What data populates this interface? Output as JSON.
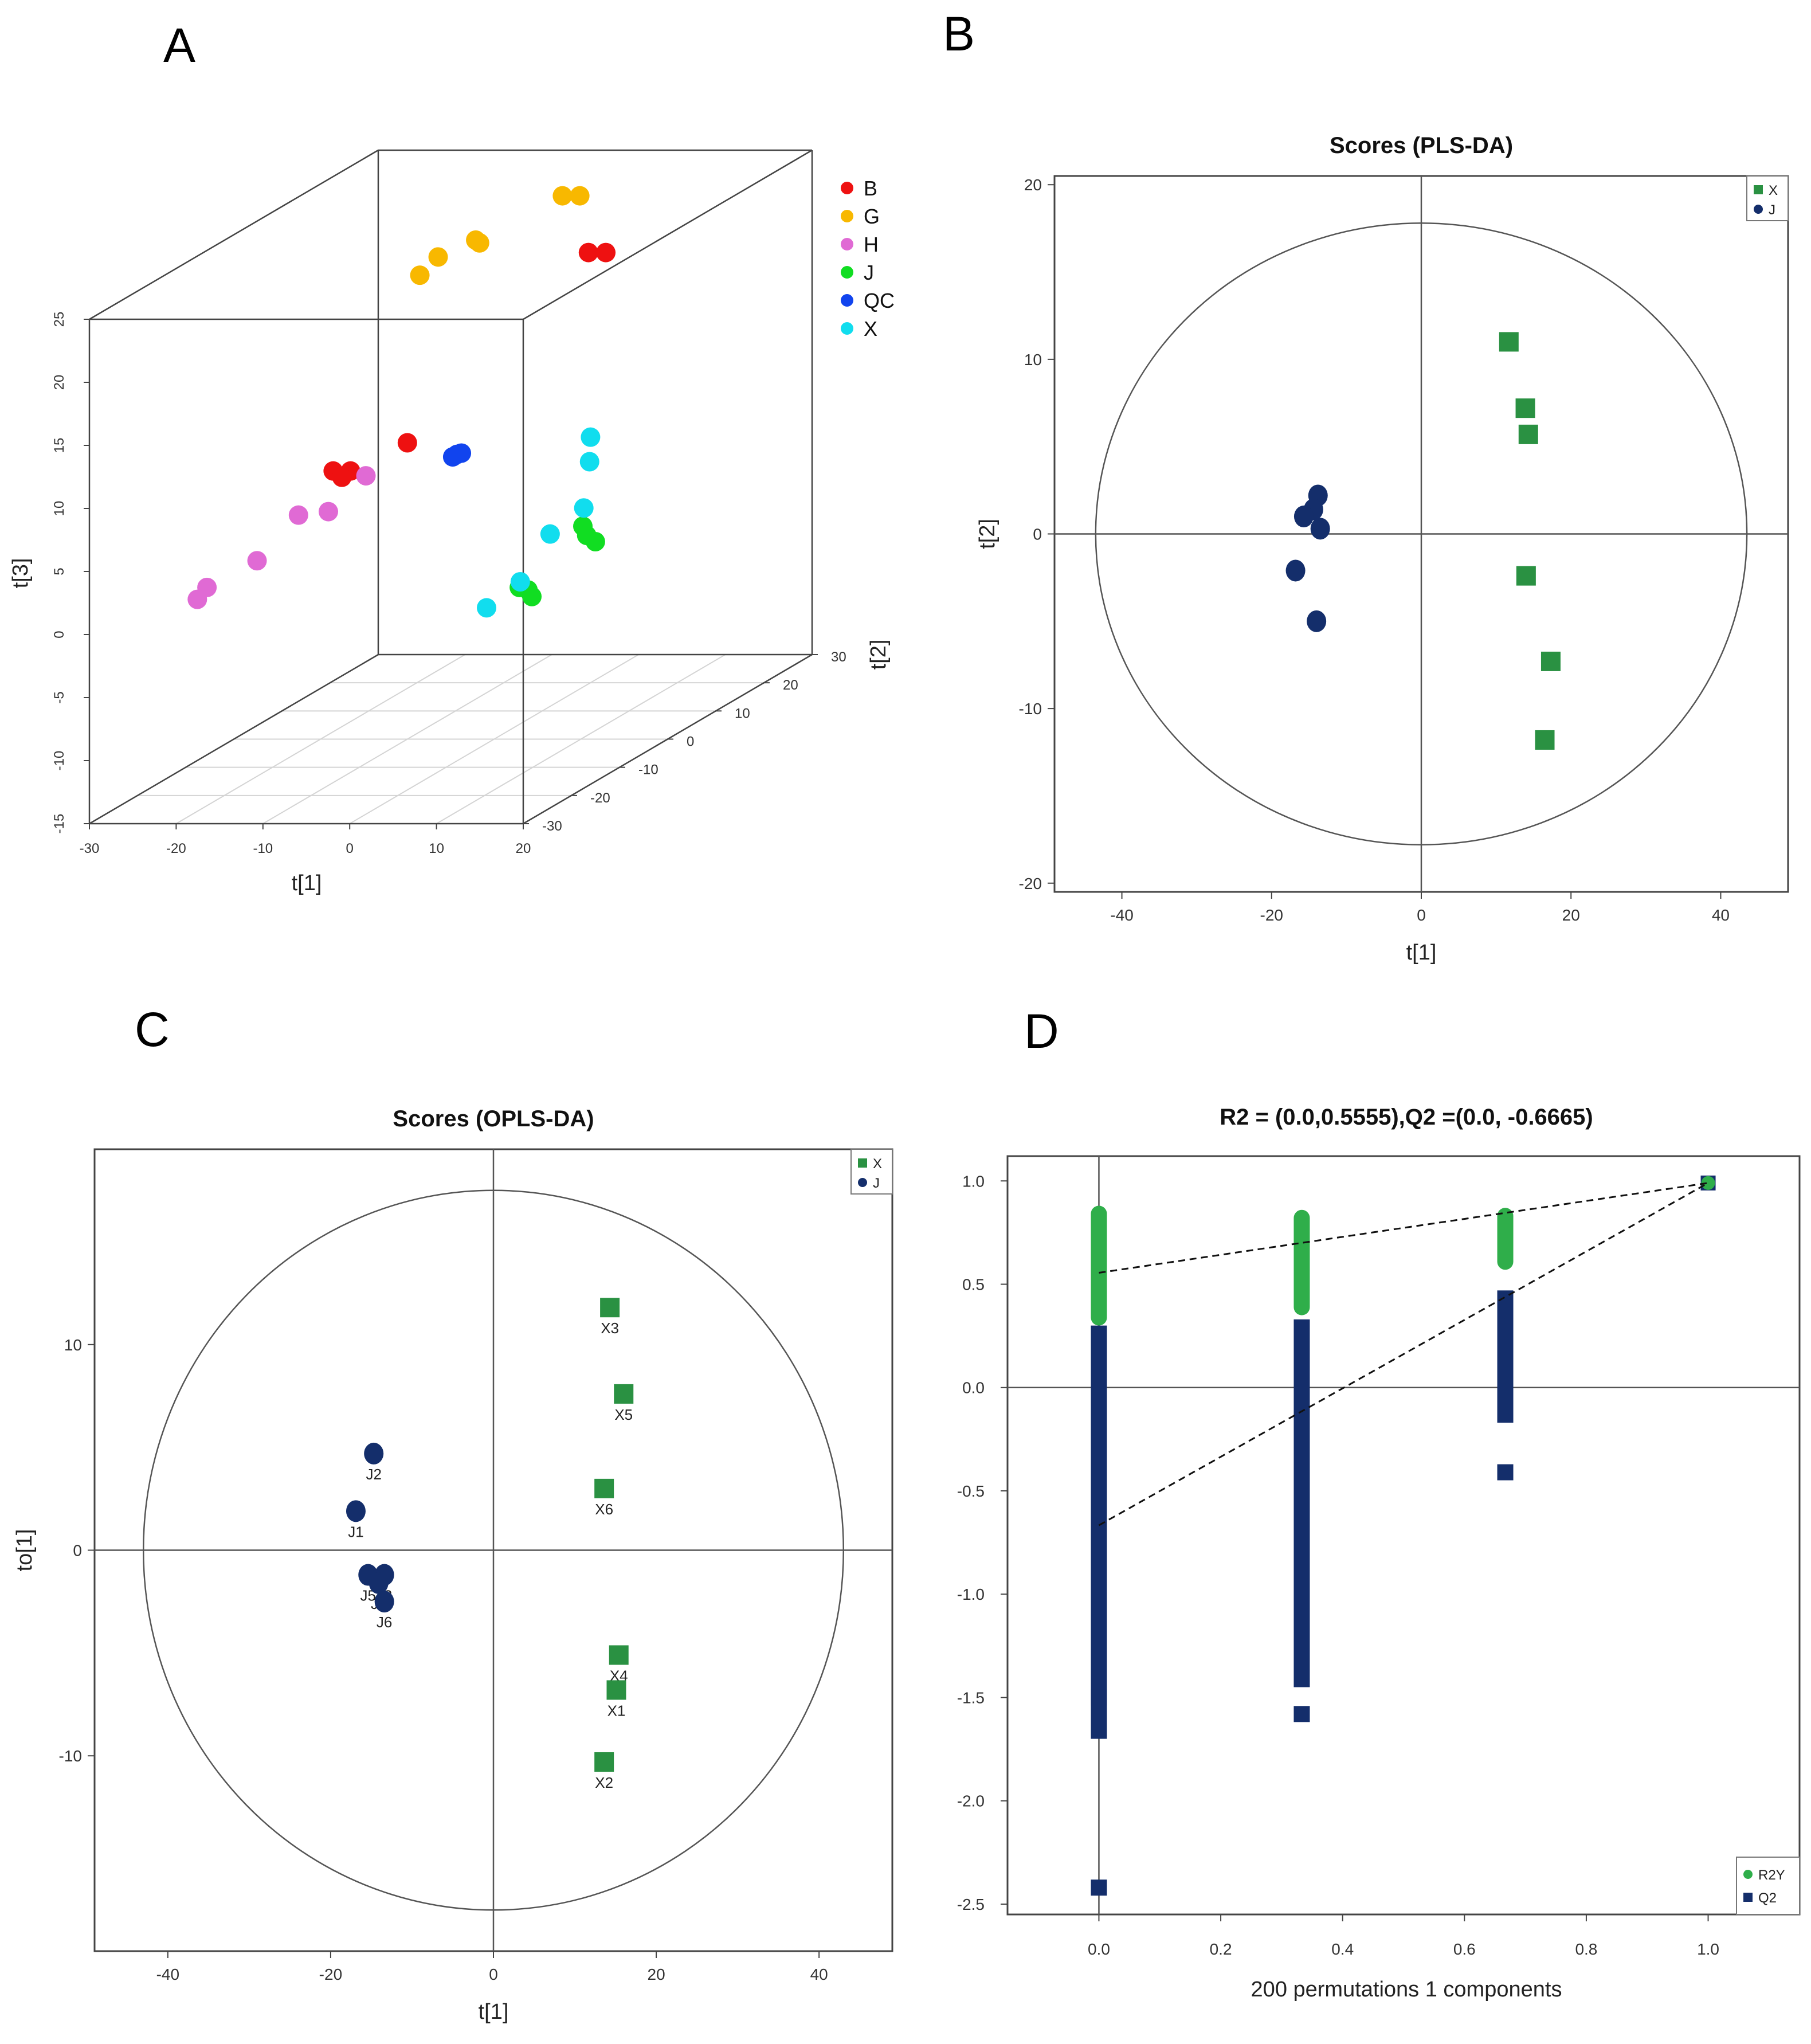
{
  "panels": {
    "a": "A",
    "b": "B",
    "c": "C",
    "d": "D"
  },
  "colors": {
    "B": "#ee1111",
    "G": "#f8b800",
    "H": "#e06ad4",
    "J3d": "#11dd22",
    "QC": "#1144ee",
    "X3d": "#11ddee",
    "X": "#2a9142",
    "J": "#142e6b",
    "R2Y": "#2fae4a",
    "Q2": "#142e6b"
  },
  "chart_data": [
    {
      "id": "A",
      "type": "scatter3d",
      "title": "",
      "xlabel": "t[1]",
      "ylabel": "t[2]",
      "zlabel": "t[3]",
      "xlim": [
        -30,
        20
      ],
      "ylim": [
        -30,
        30
      ],
      "zlim": [
        -15,
        25
      ],
      "xticks": [
        "-30",
        "-20",
        "-10",
        "0",
        "10",
        "20"
      ],
      "yticks": [
        "-30",
        "-20",
        "-10",
        "0",
        "10",
        "20",
        "30"
      ],
      "zticks": [
        "-15",
        "-10",
        "-5",
        "0",
        "5",
        "10",
        "15",
        "20",
        "25"
      ],
      "legend": [
        "B",
        "G",
        "H",
        "J",
        "QC",
        "X"
      ],
      "series": [
        {
          "name": "B",
          "points": [
            [
              -3,
              25,
              18
            ],
            [
              -1,
              25,
              18
            ],
            [
              -10,
              0,
              8.5
            ],
            [
              -13,
              -10,
              8.5
            ],
            [
              -11,
              -10,
              8.5
            ],
            [
              -12,
              -10,
              8
            ]
          ]
        },
        {
          "name": "G",
          "points": [
            [
              -6,
              25,
              22.5
            ],
            [
              -4,
              25,
              22.5
            ],
            [
              -10,
              15,
              21
            ],
            [
              -12,
              10,
              21
            ],
            [
              -13,
              8,
              20
            ],
            [
              -11,
              16,
              21
            ]
          ]
        },
        {
          "name": "H",
          "points": [
            [
              -12,
              -5,
              7
            ],
            [
              -13,
              -11,
              5.5
            ],
            [
              -17,
              -10,
              5
            ],
            [
              -19,
              -15,
              2.5
            ],
            [
              -22,
              -20,
              1.5
            ],
            [
              -22,
              -22,
              1
            ]
          ]
        },
        {
          "name": "J",
          "points": [
            [
              13,
              -5,
              3
            ],
            [
              14,
              -6,
              2.5
            ],
            [
              15,
              -6,
              2
            ],
            [
              14,
              -20,
              1.5
            ],
            [
              15,
              -20,
              1.3
            ],
            [
              16,
              -21,
              1
            ]
          ]
        },
        {
          "name": "QC",
          "points": [
            [
              -2,
              -5,
              8.5
            ],
            [
              -1.5,
              -5,
              8.7
            ],
            [
              -1,
              -5,
              8.8
            ]
          ]
        },
        {
          "name": "X",
          "points": [
            [
              10,
              2,
              8.5
            ],
            [
              11,
              0,
              7
            ],
            [
              12,
              -3,
              4
            ],
            [
              12,
              -10,
              3.5
            ],
            [
              13,
              -18,
              1.5
            ],
            [
              13,
              -25,
              1
            ]
          ]
        }
      ]
    },
    {
      "id": "B",
      "type": "scatter",
      "title": "Scores (PLS-DA)",
      "xlabel": "t[1]",
      "ylabel": "t[2]",
      "xlim": [
        -49,
        49
      ],
      "ylim": [
        -20.5,
        20.5
      ],
      "xticks": [
        "-40",
        "-20",
        "0",
        "20",
        "40"
      ],
      "yticks": [
        "-20",
        "-10",
        "0",
        "10",
        "20"
      ],
      "ellipse": {
        "rx": 43.5,
        "ry": 17.8
      },
      "legend": [
        "X",
        "J"
      ],
      "series": [
        {
          "name": "X",
          "marker": "square",
          "points": [
            [
              11.7,
              11
            ],
            [
              13.9,
              7.2
            ],
            [
              14.3,
              5.7
            ],
            [
              14,
              -2.4
            ],
            [
              17.3,
              -7.3
            ],
            [
              16.5,
              -11.8
            ]
          ]
        },
        {
          "name": "J",
          "marker": "circle",
          "points": [
            [
              -13.8,
              2.2
            ],
            [
              -14.4,
              1.4
            ],
            [
              -15.7,
              1
            ],
            [
              -13.5,
              0.3
            ],
            [
              -16.8,
              -2.1
            ],
            [
              -14,
              -5
            ]
          ]
        }
      ]
    },
    {
      "id": "C",
      "type": "scatter",
      "title": "Scores (OPLS-DA)",
      "xlabel": "t[1]",
      "ylabel": "to[1]",
      "xlim": [
        -49,
        49
      ],
      "ylim": [
        -19.5,
        19.5
      ],
      "xticks": [
        "-40",
        "-20",
        "0",
        "20",
        "40"
      ],
      "yticks": [
        "-10",
        "0",
        "10"
      ],
      "ellipse": {
        "rx": 43,
        "ry": 17.5
      },
      "legend": [
        "X",
        "J"
      ],
      "series": [
        {
          "name": "X",
          "marker": "square",
          "labels": [
            "X3",
            "X5",
            "X6",
            "X4",
            "X1",
            "X2"
          ],
          "points": [
            [
              14.3,
              11.8
            ],
            [
              16,
              7.6
            ],
            [
              13.6,
              3
            ],
            [
              15.4,
              -5.1
            ],
            [
              15.1,
              -6.8
            ],
            [
              13.6,
              -10.3
            ]
          ]
        },
        {
          "name": "J",
          "marker": "circle",
          "labels": [
            "J2",
            "J1",
            "J5",
            "J3",
            "J4",
            "J6"
          ],
          "points": [
            [
              -14.7,
              4.7
            ],
            [
              -16.9,
              1.9
            ],
            [
              -15.4,
              -1.2
            ],
            [
              -13.4,
              -1.2
            ],
            [
              -14.1,
              -1.6
            ],
            [
              -13.4,
              -2.5
            ]
          ]
        }
      ]
    },
    {
      "id": "D",
      "type": "scatter",
      "title": "R2 = (0.0,0.5555),Q2 =(0.0, -0.6665)",
      "xlabel": "200 permutations 1 components",
      "ylabel": "",
      "xlim": [
        -0.15,
        1.15
      ],
      "ylim": [
        -2.55,
        1.12
      ],
      "xticks": [
        "0.0",
        "0.2",
        "0.4",
        "0.6",
        "0.8",
        "1.0"
      ],
      "yticks": [
        "1.0",
        "0.5",
        "0.0",
        "-0.5",
        "-1.0",
        "-1.5",
        "-2.0",
        "-2.5"
      ],
      "legend": [
        "R2Y",
        "Q2"
      ],
      "series": [
        {
          "name": "R2Y",
          "marker": "circle",
          "x": [
            0,
            0.333,
            0.667,
            1.0
          ],
          "ymin": [
            0.3,
            0.35,
            0.57,
            0.99
          ],
          "ymax": [
            0.88,
            0.86,
            0.87,
            0.99
          ]
        },
        {
          "name": "Q2",
          "marker": "square",
          "x": [
            0,
            0.333,
            0.667,
            1.0
          ],
          "ymin": [
            -1.7,
            -1.45,
            -0.17,
            0.99
          ],
          "ymax": [
            0.3,
            0.33,
            0.47,
            0.99
          ],
          "outliers": [
            [
              0,
              -1.5
            ],
            [
              0,
              -2.42
            ],
            [
              0.333,
              -1.58
            ],
            [
              0.667,
              -0.41
            ]
          ]
        }
      ],
      "regression": [
        {
          "name": "R2Y",
          "from": [
            0,
            0.5555
          ],
          "to": [
            1,
            0.99
          ]
        },
        {
          "name": "Q2",
          "from": [
            0,
            -0.6665
          ],
          "to": [
            1,
            0.99
          ]
        }
      ]
    }
  ]
}
